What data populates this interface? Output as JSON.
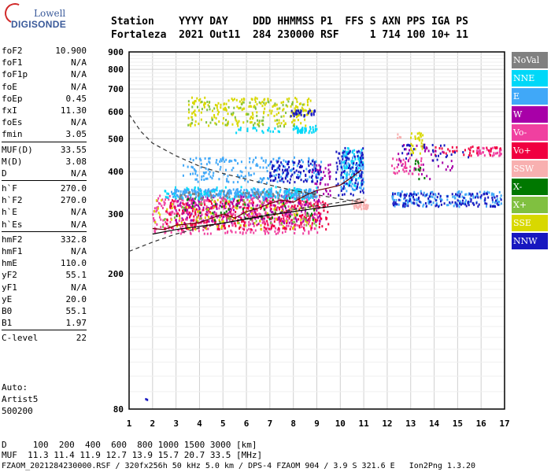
{
  "logo": {
    "line1": "Lowell",
    "line2": "DIGISONDE"
  },
  "header": {
    "row1": "Station    YYYY DAY    DDD HHMMSS P1  FFS S AXN PPS IGA PS",
    "row2": "Fortaleza  2021 Out11  284 230000 RSF     1 714 100 10+ 11"
  },
  "params": [
    [
      [
        "foF2",
        "10.900"
      ],
      [
        "foF1",
        "N/A"
      ],
      [
        "foF1p",
        "N/A"
      ],
      [
        "foE",
        "N/A"
      ],
      [
        "foEp",
        "0.45"
      ],
      [
        "fxI",
        "11.30"
      ],
      [
        "foEs",
        "N/A"
      ],
      [
        "fmin",
        "3.05"
      ]
    ],
    [
      [
        "MUF(D)",
        "33.55"
      ],
      [
        "M(D)",
        "3.08"
      ],
      [
        "D",
        "N/A"
      ]
    ],
    [
      [
        "h`F",
        "270.0"
      ],
      [
        "h`F2",
        "270.0"
      ],
      [
        "h`E",
        "N/A"
      ],
      [
        "h`Es",
        "N/A"
      ]
    ],
    [
      [
        "hmF2",
        "332.8"
      ],
      [
        "hmF1",
        "N/A"
      ],
      [
        "hmE",
        "110.0"
      ],
      [
        "yF2",
        "55.1"
      ],
      [
        "yF1",
        "N/A"
      ],
      [
        "yE",
        "20.0"
      ],
      [
        "B0",
        "55.1"
      ],
      [
        "B1",
        "1.97"
      ]
    ],
    [
      [
        "C-level",
        "22"
      ]
    ]
  ],
  "auto": {
    "line1": "Auto:",
    "line2": "Artist5",
    "line3": "500200"
  },
  "legend": [
    {
      "label": "NoVal",
      "color": "#808080"
    },
    {
      "label": "NNE",
      "color": "#00d8f8"
    },
    {
      "label": "E",
      "color": "#40a8f8"
    },
    {
      "label": "W",
      "color": "#a800a8"
    },
    {
      "label": "Vo-",
      "color": "#f040a0"
    },
    {
      "label": "Vo+",
      "color": "#f00040"
    },
    {
      "label": "SSW",
      "color": "#f8b0b0"
    },
    {
      "label": "X-",
      "color": "#007800"
    },
    {
      "label": "X+",
      "color": "#80c040"
    },
    {
      "label": "SSE",
      "color": "#d8d800"
    },
    {
      "label": "NNW",
      "color": "#1818c0"
    }
  ],
  "bottom": {
    "row1": "D     100  200  400  600  800 1000 1500 3000 [km]",
    "row2": "MUF  11.3 11.4 11.9 12.7 13.9 15.7 20.7 33.5 [MHz]",
    "row3": "FZAOM_2021284230000.RSF / 320fx256h 50 kHz 5.0 km / DPS-4 FZAOM 904 / 3.9 S 321.6 E   Ion2Png 1.3.20"
  },
  "chart_data": {
    "type": "scatter",
    "xlim": [
      1,
      17
    ],
    "ylim": [
      80,
      900
    ],
    "x_ticks": [
      "1",
      "2",
      "3",
      "4",
      "5",
      "6",
      "7",
      "8",
      "9",
      "10",
      "11",
      "12",
      "13",
      "14",
      "15",
      "16",
      "17"
    ],
    "y_ticks": [
      "80",
      "200",
      "300",
      "400",
      "500",
      "600",
      "700",
      "800",
      "900"
    ],
    "y_tick_values": [
      80,
      200,
      300,
      400,
      500,
      600,
      700,
      800,
      900
    ],
    "y_scale": "log",
    "grid": true,
    "series": [
      {
        "name": "Vo-",
        "color": "#f040a0",
        "clusters": [
          {
            "x": [
              2.0,
              9.2
            ],
            "y": [
              262,
              340
            ],
            "n": 520
          },
          {
            "x": [
              12.2,
              13.5
            ],
            "y": [
              390,
              440
            ],
            "n": 40
          },
          {
            "x": [
              15.8,
              16.9
            ],
            "y": [
              445,
              470
            ],
            "n": 40
          }
        ]
      },
      {
        "name": "Vo+",
        "color": "#f00040",
        "clusters": [
          {
            "x": [
              2.5,
              9.5
            ],
            "y": [
              270,
              330
            ],
            "n": 300
          },
          {
            "x": [
              14.0,
              16.9
            ],
            "y": [
              445,
              475
            ],
            "n": 40
          }
        ]
      },
      {
        "name": "W",
        "color": "#a800a8",
        "clusters": [
          {
            "x": [
              3.0,
              9.2
            ],
            "y": [
              280,
              340
            ],
            "n": 200
          },
          {
            "x": [
              8.8,
              9.6
            ],
            "y": [
              340,
              420
            ],
            "n": 40
          },
          {
            "x": [
              12.3,
              14.8
            ],
            "y": [
              380,
              480
            ],
            "n": 40
          }
        ]
      },
      {
        "name": "E",
        "color": "#40a8f8",
        "clusters": [
          {
            "x": [
              2.8,
              9.0
            ],
            "y": [
              335,
              355
            ],
            "n": 320
          },
          {
            "x": [
              3.3,
              9.2
            ],
            "y": [
              370,
              440
            ],
            "n": 180
          },
          {
            "x": [
              10.0,
              11.0
            ],
            "y": [
              350,
              460
            ],
            "n": 130
          },
          {
            "x": [
              12.2,
              16.9
            ],
            "y": [
              315,
              350
            ],
            "n": 170
          }
        ]
      },
      {
        "name": "NNE",
        "color": "#00d8f8",
        "clusters": [
          {
            "x": [
              2.5,
              9.0
            ],
            "y": [
              330,
              360
            ],
            "n": 100
          },
          {
            "x": [
              8.0,
              9.0
            ],
            "y": [
              520,
              545
            ],
            "n": 40
          },
          {
            "x": [
              5.5,
              7.5
            ],
            "y": [
              520,
              540
            ],
            "n": 20
          },
          {
            "x": [
              10.1,
              11.0
            ],
            "y": [
              360,
              470
            ],
            "n": 60
          }
        ]
      },
      {
        "name": "SSE",
        "color": "#d8d800",
        "clusters": [
          {
            "x": [
              3.5,
              8.8
            ],
            "y": [
              545,
              660
            ],
            "n": 220
          },
          {
            "x": [
              2.0,
              9.0
            ],
            "y": [
              270,
              330
            ],
            "n": 90
          },
          {
            "x": [
              13.0,
              13.6
            ],
            "y": [
              440,
              520
            ],
            "n": 30
          }
        ]
      },
      {
        "name": "X+",
        "color": "#80c040",
        "clusters": [
          {
            "x": [
              3.5,
              8.5
            ],
            "y": [
              540,
              650
            ],
            "n": 70
          },
          {
            "x": [
              2.2,
              9.0
            ],
            "y": [
              275,
              330
            ],
            "n": 50
          }
        ]
      },
      {
        "name": "X-",
        "color": "#007800",
        "clusters": [
          {
            "x": [
              3.0,
              9.0
            ],
            "y": [
              285,
              335
            ],
            "n": 40
          },
          {
            "x": [
              13.2,
              13.6
            ],
            "y": [
              380,
              430
            ],
            "n": 10
          }
        ]
      },
      {
        "name": "NNW",
        "color": "#1818c0",
        "clusters": [
          {
            "x": [
              7.0,
              9.2
            ],
            "y": [
              370,
              430
            ],
            "n": 110
          },
          {
            "x": [
              7.8,
              9.0
            ],
            "y": [
              580,
              605
            ],
            "n": 30
          },
          {
            "x": [
              9.8,
              11.0
            ],
            "y": [
              340,
              470
            ],
            "n": 90
          },
          {
            "x": [
              12.2,
              16.9
            ],
            "y": [
              315,
              345
            ],
            "n": 120
          },
          {
            "x": [
              12.5,
              15.5
            ],
            "y": [
              430,
              480
            ],
            "n": 30
          },
          {
            "x": [
              1.7,
              1.8
            ],
            "y": [
              85,
              86
            ],
            "n": 2
          }
        ]
      },
      {
        "name": "SSW",
        "color": "#f8b0b0",
        "clusters": [
          {
            "x": [
              10.5,
              11.2
            ],
            "y": [
              310,
              330
            ],
            "n": 50
          },
          {
            "x": [
              12.4,
              12.6
            ],
            "y": [
              500,
              515
            ],
            "n": 4
          }
        ]
      },
      {
        "name": "NoVal",
        "color": "#808080",
        "clusters": [
          {
            "x": [
              3.0,
              9.0
            ],
            "y": [
              330,
              350
            ],
            "n": 60
          }
        ]
      }
    ],
    "traces": {
      "dashed": {
        "x": [
          1.0,
          1.5,
          2,
          3,
          4,
          5,
          6,
          7,
          8,
          9,
          10,
          11
        ],
        "y": [
          590,
          525,
          485,
          445,
          415,
          395,
          380,
          365,
          352,
          342,
          332,
          325
        ]
      },
      "lower": {
        "x": [
          1.0,
          2,
          3,
          4,
          5,
          6,
          7,
          8,
          9,
          10,
          11
        ],
        "y": [
          233,
          248,
          262,
          273,
          282,
          291,
          300,
          309,
          317,
          325,
          334
        ]
      },
      "trace": {
        "x": [
          2.0,
          2.5,
          3,
          4,
          5,
          5.5,
          6,
          6.5,
          7,
          7.5,
          8,
          8.5,
          9,
          9.5,
          10,
          10.5,
          10.9
        ],
        "y": [
          272,
          270,
          278,
          283,
          300,
          292,
          305,
          312,
          322,
          330,
          325,
          340,
          352,
          358,
          365,
          385,
          405
        ]
      },
      "lower2": {
        "x": [
          2.0,
          3,
          4,
          5,
          6,
          7,
          8,
          9,
          10,
          11
        ],
        "y": [
          262,
          270,
          276,
          282,
          290,
          298,
          305,
          312,
          318,
          325
        ]
      }
    }
  }
}
